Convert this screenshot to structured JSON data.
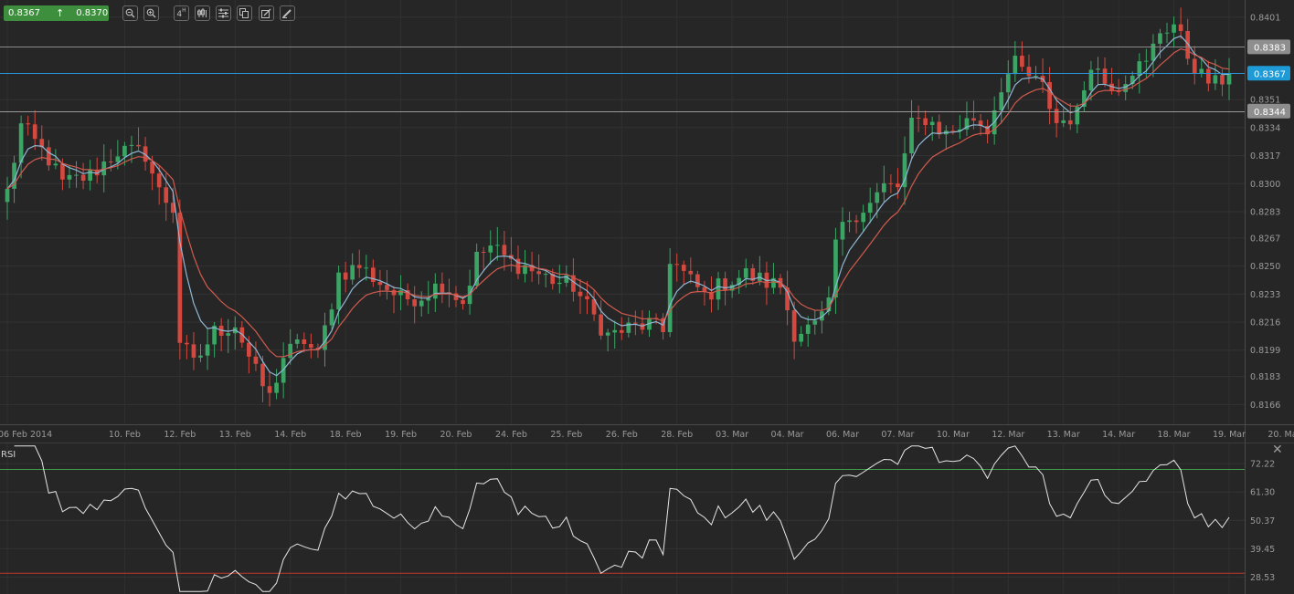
{
  "toolbar": {
    "bid": "0.8367",
    "ask": "0.8370",
    "timeframe_label": "4",
    "timeframe_sup": "H",
    "buttons": [
      "zoom-out-icon",
      "zoom-in-icon",
      "timeframe-button",
      "chart-type-icon",
      "indicators-icon",
      "copy-icon",
      "draw-icon",
      "pencil-icon"
    ]
  },
  "chart_data": {
    "type": "candlestick",
    "y_axis": {
      "ticks": [
        "0.8401",
        "0.8383",
        "0.8367",
        "0.8351",
        "0.8344",
        "0.8334",
        "0.8317",
        "0.8300",
        "0.8283",
        "0.8267",
        "0.8250",
        "0.8233",
        "0.8216",
        "0.8199",
        "0.8183",
        "0.8166"
      ],
      "grid_values": [
        0.8401,
        0.8351,
        0.8334,
        0.8317,
        0.83,
        0.8283,
        0.8267,
        0.825,
        0.8233,
        0.8216,
        0.8199,
        0.8183,
        0.8166
      ],
      "range": [
        0.8154,
        0.8407
      ]
    },
    "x_axis": {
      "labels": [
        "06 Feb 2014",
        "10. Feb",
        "12. Feb",
        "13. Feb",
        "14. Feb",
        "18. Feb",
        "19. Feb",
        "20. Feb",
        "24. Feb",
        "25. Feb",
        "26. Feb",
        "28. Feb",
        "03. Mar",
        "04. Mar",
        "06. Mar",
        "07. Mar",
        "10. Mar",
        "12. Mar",
        "13. Mar",
        "14. Mar",
        "18. Mar",
        "19. Mar",
        "20. Mar"
      ],
      "label_bar_index": [
        0,
        17,
        25,
        33,
        41,
        49,
        57,
        65,
        73,
        81,
        89,
        97,
        105,
        113,
        121,
        129,
        137,
        145,
        153,
        161,
        169,
        177,
        185
      ]
    },
    "price_lines": [
      {
        "label": "0.8383",
        "value": 0.8383,
        "color": "#8a8a8a",
        "badge": "#8e8e8e"
      },
      {
        "label": "0.8367",
        "value": 0.8367,
        "color": "#2a93d5",
        "badge": "#1e9ad6"
      },
      {
        "label": "0.8344",
        "value": 0.8344,
        "color": "#9a9a9a",
        "badge": "#8e8e8e"
      }
    ],
    "anchors_close": [
      [
        0,
        0.8295
      ],
      [
        2,
        0.8335
      ],
      [
        4,
        0.8325
      ],
      [
        6,
        0.8315
      ],
      [
        8,
        0.83
      ],
      [
        12,
        0.8305
      ],
      [
        16,
        0.832
      ],
      [
        20,
        0.8318
      ],
      [
        22,
        0.8295
      ],
      [
        24,
        0.8285
      ],
      [
        25,
        0.8205
      ],
      [
        27,
        0.819
      ],
      [
        30,
        0.821
      ],
      [
        33,
        0.8215
      ],
      [
        36,
        0.8185
      ],
      [
        38,
        0.817
      ],
      [
        40,
        0.8195
      ],
      [
        43,
        0.8205
      ],
      [
        45,
        0.8195
      ],
      [
        48,
        0.8245
      ],
      [
        51,
        0.825
      ],
      [
        54,
        0.824
      ],
      [
        57,
        0.823
      ],
      [
        60,
        0.8232
      ],
      [
        63,
        0.824
      ],
      [
        66,
        0.8228
      ],
      [
        68,
        0.8255
      ],
      [
        70,
        0.8262
      ],
      [
        73,
        0.8252
      ],
      [
        75,
        0.825
      ],
      [
        77,
        0.8245
      ],
      [
        80,
        0.824
      ],
      [
        82,
        0.8238
      ],
      [
        84,
        0.8225
      ],
      [
        87,
        0.8208
      ],
      [
        90,
        0.8212
      ],
      [
        93,
        0.8215
      ],
      [
        95,
        0.821
      ],
      [
        96,
        0.8255
      ],
      [
        98,
        0.8245
      ],
      [
        101,
        0.8232
      ],
      [
        104,
        0.824
      ],
      [
        107,
        0.8245
      ],
      [
        110,
        0.824
      ],
      [
        112,
        0.8238
      ],
      [
        114,
        0.821
      ],
      [
        117,
        0.8213
      ],
      [
        119,
        0.8225
      ],
      [
        120,
        0.8265
      ],
      [
        122,
        0.828
      ],
      [
        125,
        0.8288
      ],
      [
        127,
        0.8298
      ],
      [
        129,
        0.8298
      ],
      [
        131,
        0.8335
      ],
      [
        133,
        0.834
      ],
      [
        136,
        0.833
      ],
      [
        138,
        0.8335
      ],
      [
        140,
        0.834
      ],
      [
        142,
        0.8333
      ],
      [
        144,
        0.836
      ],
      [
        146,
        0.8372
      ],
      [
        148,
        0.8365
      ],
      [
        150,
        0.8358
      ],
      [
        152,
        0.8337
      ],
      [
        155,
        0.8342
      ],
      [
        157,
        0.8375
      ],
      [
        159,
        0.8362
      ],
      [
        161,
        0.836
      ],
      [
        163,
        0.837
      ],
      [
        165,
        0.8372
      ],
      [
        167,
        0.8393
      ],
      [
        169,
        0.8397
      ],
      [
        171,
        0.8378
      ],
      [
        173,
        0.8365
      ],
      [
        175,
        0.836
      ],
      [
        177,
        0.8367
      ]
    ],
    "n_bars": 178,
    "series": [
      {
        "name": "",
        "type": "ema",
        "period": 5,
        "color": "#8fb8d6"
      },
      {
        "name": "",
        "type": "ema",
        "period": 10,
        "color": "#d05a4e"
      }
    ],
    "colors": {
      "up": "#3aa564",
      "down": "#d4493f"
    }
  },
  "rsi": {
    "label": "RSI",
    "ticks": [
      "72.22",
      "61.30",
      "50.37",
      "39.45",
      "28.53"
    ],
    "tick_values": [
      72.22,
      61.3,
      50.37,
      39.45,
      28.53
    ],
    "range": [
      22.0,
      80.0
    ],
    "overbought": 70,
    "oversold": 30,
    "overbought_color": "#3b9b4a",
    "oversold_color": "#c0392b"
  }
}
